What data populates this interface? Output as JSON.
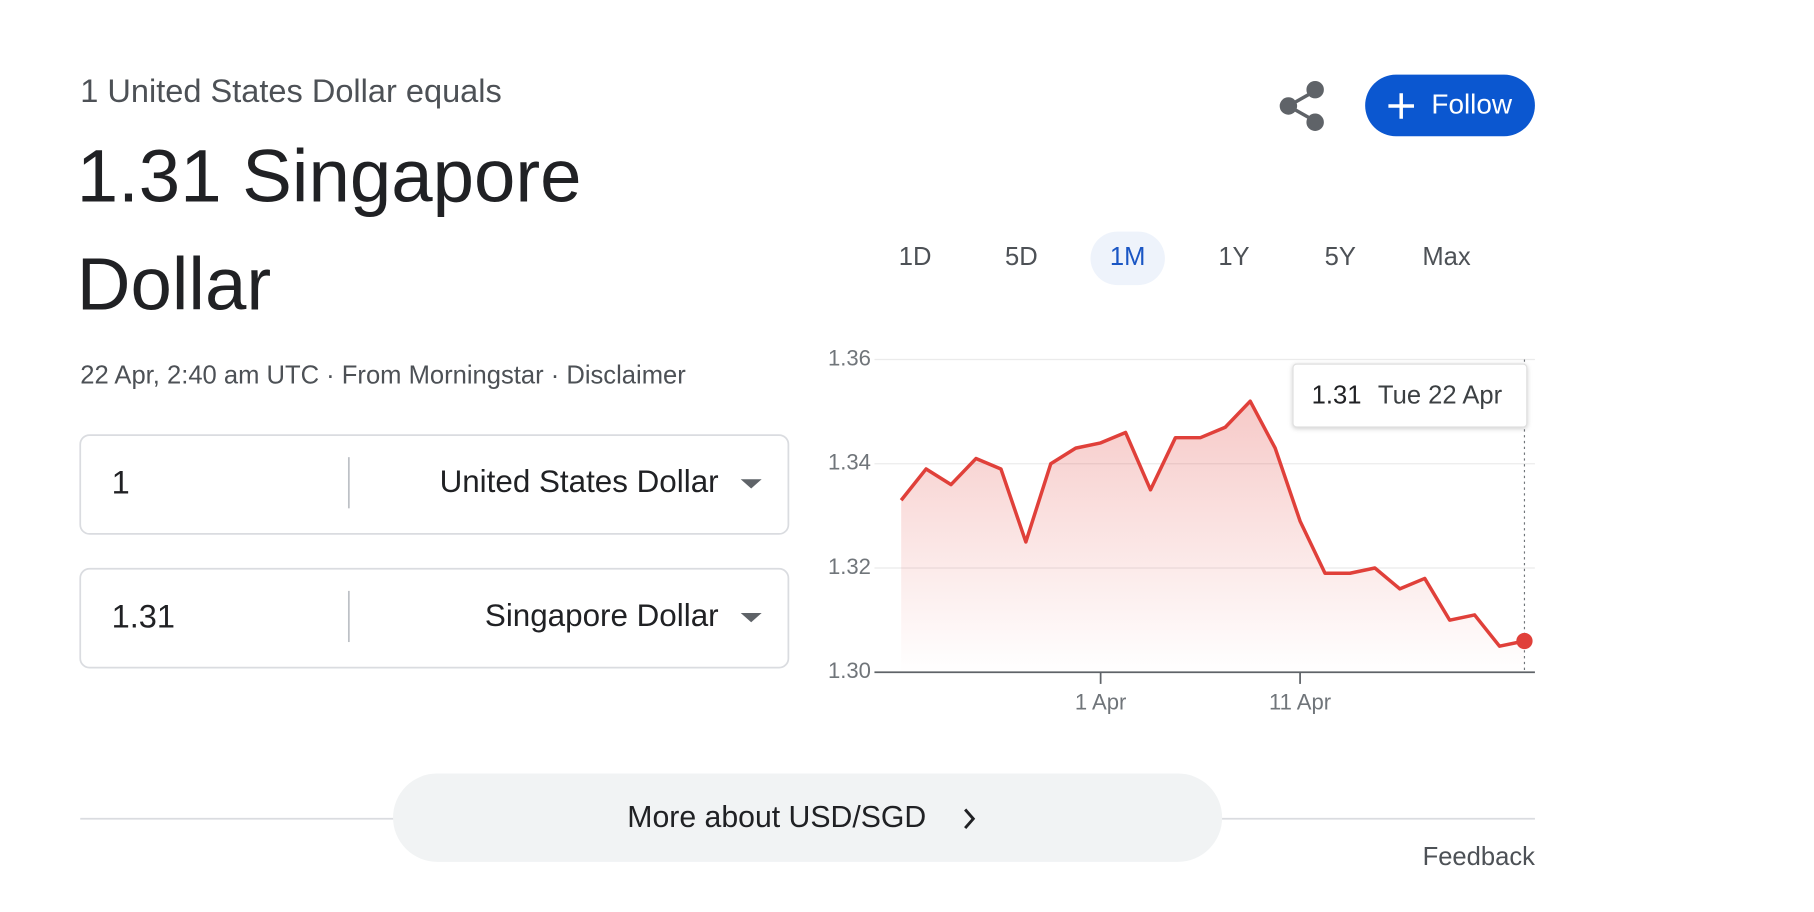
{
  "header": {
    "base_line": "1 United States Dollar equals",
    "converted_amount": "1.31",
    "target_currency": "Singapore Dollar",
    "source_line": "22 Apr, 2:40 am UTC · From Morningstar · Disclaimer"
  },
  "actions": {
    "follow": "Follow"
  },
  "converter": {
    "rows": [
      {
        "amount": "1",
        "currency": "United States Dollar"
      },
      {
        "amount": "1.31",
        "currency": "Singapore Dollar"
      }
    ]
  },
  "range_tabs": {
    "items": [
      "1D",
      "5D",
      "1M",
      "1Y",
      "5Y",
      "Max"
    ],
    "selected": "1M"
  },
  "chart_data": {
    "type": "line",
    "categories": [
      null,
      null,
      null,
      null,
      null,
      null,
      null,
      null,
      "1 Apr",
      null,
      null,
      null,
      null,
      null,
      null,
      null,
      "11 Apr",
      null,
      null,
      null,
      null,
      null,
      null,
      null,
      null,
      null
    ],
    "series": [
      {
        "name": "USD/SGD",
        "color": "#e0403a",
        "values": [
          1.333,
          1.339,
          1.336,
          1.341,
          1.339,
          1.325,
          1.34,
          1.343,
          1.344,
          1.346,
          1.335,
          1.345,
          1.345,
          1.347,
          1.352,
          1.343,
          1.329,
          1.319,
          1.319,
          1.32,
          1.316,
          1.318,
          1.31,
          1.311,
          1.305,
          1.306
        ]
      }
    ],
    "ylim": [
      1.3,
      1.36
    ],
    "yticks": [
      {
        "value": 1.3,
        "label": "1.30"
      },
      1.32,
      1.34,
      1.36
    ],
    "grid": true,
    "tooltip": {
      "value": "1.31",
      "date": "Tue 22 Apr"
    }
  },
  "footer": {
    "more_button": "More about USD/SGD",
    "feedback": "Feedback"
  }
}
